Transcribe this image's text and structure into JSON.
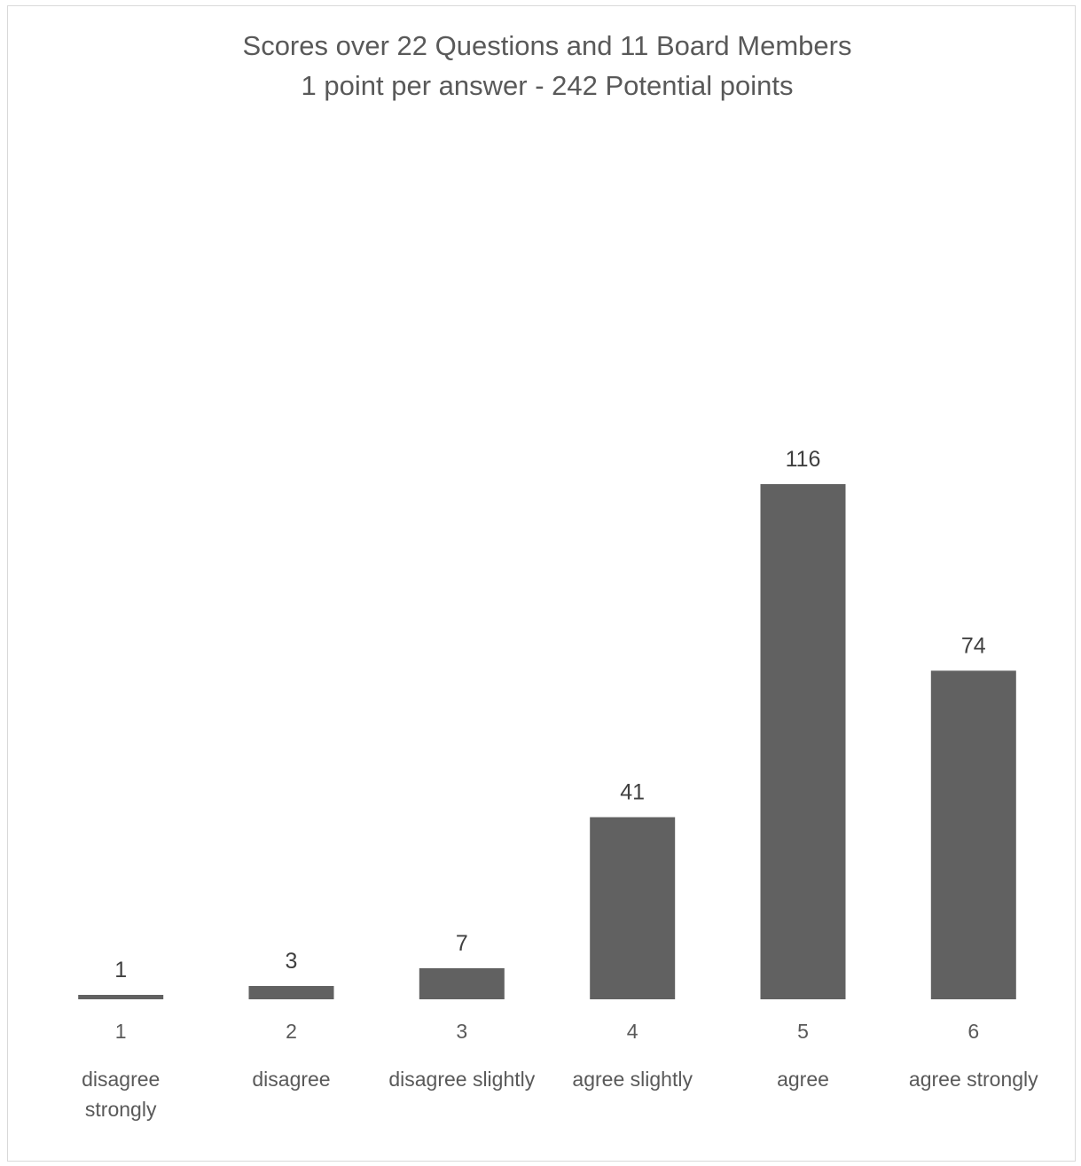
{
  "chart_data": {
    "type": "bar",
    "title_lines": [
      "Scores over 22 Questions and 11 Board Members",
      "1 point per answer - 242 Potential points"
    ],
    "categories": [
      "1",
      "2",
      "3",
      "4",
      "5",
      "6"
    ],
    "category_descriptions": [
      [
        "disagree",
        "strongly"
      ],
      [
        "disagree"
      ],
      [
        "disagree slightly"
      ],
      [
        "agree slightly"
      ],
      [
        "agree"
      ],
      [
        "agree strongly"
      ]
    ],
    "values": [
      1,
      3,
      7,
      41,
      116,
      74
    ],
    "data_labels": [
      "1",
      "3",
      "7",
      "41",
      "116",
      "74"
    ],
    "xlabel": "",
    "ylabel": "",
    "ylim": [
      0,
      116
    ],
    "grid": false,
    "legend": "none",
    "bar_color": "#616161"
  }
}
